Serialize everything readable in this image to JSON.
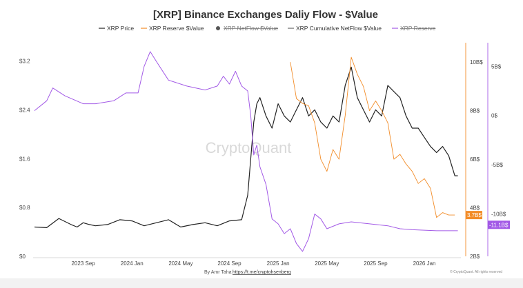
{
  "chart_data": {
    "type": "line",
    "title": "[XRP] Binance Exchanges Daliy Flow - $Value",
    "legend": [
      {
        "label": "XRP Price",
        "color": "#222222",
        "visible": true,
        "marker": "line"
      },
      {
        "label": "XRP Reserve $Value",
        "color": "#f28c28",
        "visible": true,
        "marker": "line"
      },
      {
        "label": "XRP NetFlow $Value",
        "color": "#555555",
        "visible": false,
        "marker": "dot"
      },
      {
        "label": "XRP Cumulative NetFlow $Value",
        "color": "#666666",
        "visible": true,
        "marker": "line"
      },
      {
        "label": "XRP Reserve",
        "color": "#a259e6",
        "visible": false,
        "marker": "line"
      }
    ],
    "legend_placement": "top",
    "x_ticks": [
      "2023 Sep",
      "2024 Jan",
      "2024 May",
      "2024 Sep",
      "2025 Jan",
      "2025 May",
      "2025 Sep",
      "2026 Jan"
    ],
    "y_left": {
      "ticks": [
        "$0",
        "$0.8",
        "$1.6",
        "$2.4",
        "$3.2"
      ],
      "range": [
        0,
        3.5
      ]
    },
    "y_right1": {
      "ticks": [
        "2B$",
        "4B$",
        "6B$",
        "8B$",
        "10B$"
      ],
      "range": [
        2,
        10.8
      ],
      "badge": "3.7B$"
    },
    "y_right2": {
      "ticks": [
        "5B$",
        "0$",
        "-5B$",
        "-10B$"
      ],
      "range": [
        -14.3,
        7.4
      ],
      "badge": "-11.1B$"
    },
    "grid": false,
    "series": [
      {
        "name": "XRP Price",
        "axis": "left",
        "color": "#222222",
        "x": [
          0,
          2,
          4,
          6,
          7,
          8,
          9,
          10,
          12,
          14,
          16,
          18,
          20,
          22,
          24,
          26,
          28,
          30,
          32,
          34,
          35,
          36,
          36.5,
          37,
          38,
          39,
          40,
          41,
          42,
          43,
          44,
          45,
          46,
          47,
          48,
          49,
          50,
          51,
          52,
          53,
          54,
          55,
          56,
          57,
          58,
          59,
          60,
          61,
          62,
          63,
          64,
          65,
          66,
          67,
          68,
          69,
          69.5
        ],
        "y": [
          0.48,
          0.47,
          0.62,
          0.52,
          0.48,
          0.55,
          0.52,
          0.5,
          0.52,
          0.6,
          0.58,
          0.5,
          0.55,
          0.6,
          0.48,
          0.52,
          0.55,
          0.5,
          0.58,
          0.6,
          1.0,
          2.2,
          2.5,
          2.6,
          2.3,
          2.1,
          2.5,
          2.3,
          2.2,
          2.4,
          2.6,
          2.3,
          2.4,
          2.2,
          2.1,
          2.3,
          2.2,
          2.8,
          3.1,
          2.6,
          2.4,
          2.2,
          2.4,
          2.3,
          2.8,
          2.7,
          2.6,
          2.3,
          2.1,
          2.1,
          1.95,
          1.8,
          1.7,
          1.8,
          1.65,
          1.32,
          1.32
        ]
      },
      {
        "name": "XRP Reserve $Value",
        "axis": "right1",
        "color": "#f28c28",
        "x": [
          42,
          43,
          44,
          45,
          46,
          47,
          48,
          49,
          50,
          51,
          52,
          53,
          54,
          55,
          56,
          57,
          58,
          59,
          60,
          61,
          62,
          63,
          64,
          65,
          66,
          67,
          68,
          69
        ],
        "y": [
          10,
          8.5,
          8.3,
          8.2,
          7.5,
          6.0,
          5.5,
          6.4,
          6.0,
          7.8,
          10.2,
          9.5,
          9.0,
          8.0,
          8.4,
          8.0,
          7.5,
          6.0,
          6.2,
          5.8,
          5.5,
          5.0,
          5.2,
          4.8,
          3.6,
          3.8,
          3.7,
          3.7
        ]
      },
      {
        "name": "XRP Cumulative NetFlow $Value",
        "axis": "right2",
        "color": "#a259e6",
        "x": [
          0,
          2,
          3,
          5,
          8,
          10,
          13,
          15,
          17,
          18,
          19,
          20,
          22,
          25,
          28,
          30,
          31,
          32,
          33,
          34,
          35,
          35.5,
          36,
          36.5,
          37,
          38,
          39,
          40,
          41,
          42,
          43,
          44,
          45,
          46,
          47,
          48,
          50,
          52,
          55,
          58,
          60,
          62,
          66,
          69.5
        ],
        "y": [
          0.5,
          1.5,
          2.8,
          2.0,
          1.2,
          1.2,
          1.5,
          2.3,
          2.3,
          5.0,
          6.5,
          5.5,
          3.6,
          3.0,
          2.6,
          3.0,
          4.0,
          3.2,
          4.5,
          3.0,
          2.5,
          0,
          -4.0,
          -3.0,
          -5.2,
          -7.0,
          -10.5,
          -11.0,
          -12.0,
          -11.5,
          -13.0,
          -13.8,
          -12.5,
          -10.0,
          -10.5,
          -11.5,
          -11.0,
          -10.8,
          -11.0,
          -11.2,
          -11.5,
          -11.6,
          -11.7,
          -11.7
        ]
      }
    ],
    "watermark": "CryptoQuant",
    "footer": {
      "author": "By Amr Taha",
      "link": "https://t.me/cryptohsenberg"
    },
    "copyright": "© CryptoQuant. All rights reserved"
  }
}
